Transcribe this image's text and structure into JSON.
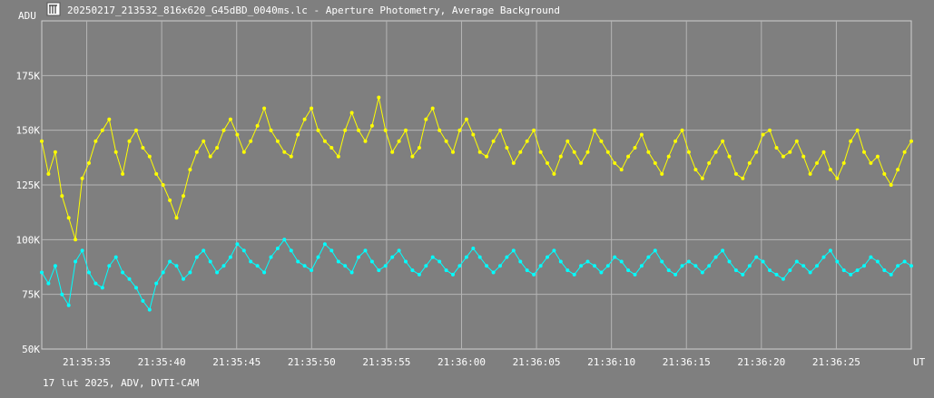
{
  "window": {
    "title": "20250217_213532_816x620_G45dBD_0040ms.lc - Aperture Photometry, Average Background",
    "icon": "lightcurve-app-icon"
  },
  "footer": {
    "caption": "17 lut 2025, ADV, DVTI-CAM"
  },
  "chart_data": {
    "type": "line",
    "title": "",
    "xlabel": "UT",
    "ylabel": "ADU",
    "grid": true,
    "ylim": [
      50000,
      200000
    ],
    "xlim": [
      "21:35:32.0",
      "21:36:30.0"
    ],
    "y_ticks": [
      {
        "value": 50000,
        "label": "50K"
      },
      {
        "value": 75000,
        "label": "75K"
      },
      {
        "value": 100000,
        "label": "100K"
      },
      {
        "value": 125000,
        "label": "125K"
      },
      {
        "value": 150000,
        "label": "150K"
      },
      {
        "value": 175000,
        "label": "175K"
      }
    ],
    "x_ticks": [
      "21:35:35",
      "21:35:40",
      "21:35:45",
      "21:35:50",
      "21:35:55",
      "21:36:00",
      "21:36:05",
      "21:36:10",
      "21:36:15",
      "21:36:20",
      "21:36:25"
    ],
    "series": [
      {
        "color": "#ffff00",
        "x_start": "21:35:32.0",
        "interval_s": 0.04,
        "y": [
          145000,
          130000,
          140000,
          120000,
          110000,
          100000,
          128000,
          135000,
          145000,
          150000,
          155000,
          140000,
          130000,
          145000,
          150000,
          142000,
          138000,
          130000,
          125000,
          118000,
          110000,
          120000,
          132000,
          140000,
          145000,
          138000,
          142000,
          150000,
          155000,
          148000,
          140000,
          145000,
          152000,
          160000,
          150000,
          145000,
          140000,
          138000,
          148000,
          155000,
          160000,
          150000,
          145000,
          142000,
          138000,
          150000,
          158000,
          150000,
          145000,
          152000,
          165000,
          150000,
          140000,
          145000,
          150000,
          138000,
          142000,
          155000,
          160000,
          150000,
          145000,
          140000,
          150000,
          155000,
          148000,
          140000,
          138000,
          145000,
          150000,
          142000,
          135000,
          140000,
          145000,
          150000,
          140000,
          135000,
          130000,
          138000,
          145000,
          140000,
          135000,
          140000,
          150000,
          145000,
          140000,
          135000,
          132000,
          138000,
          142000,
          148000,
          140000,
          135000,
          130000,
          138000,
          145000,
          150000,
          140000,
          132000,
          128000,
          135000,
          140000,
          145000,
          138000,
          130000,
          128000,
          135000,
          140000,
          148000,
          150000,
          142000,
          138000,
          140000,
          145000,
          138000,
          130000,
          135000,
          140000,
          132000,
          128000,
          135000,
          145000,
          150000,
          140000,
          135000,
          138000,
          130000,
          125000,
          132000,
          140000,
          145000
        ],
        "markers": true
      },
      {
        "color": "#00ffff",
        "x_start": "21:35:32.0",
        "interval_s": 0.04,
        "y": [
          85000,
          80000,
          88000,
          75000,
          70000,
          90000,
          95000,
          85000,
          80000,
          78000,
          88000,
          92000,
          85000,
          82000,
          78000,
          72000,
          68000,
          80000,
          85000,
          90000,
          88000,
          82000,
          85000,
          92000,
          95000,
          90000,
          85000,
          88000,
          92000,
          98000,
          95000,
          90000,
          88000,
          85000,
          92000,
          96000,
          100000,
          95000,
          90000,
          88000,
          86000,
          92000,
          98000,
          95000,
          90000,
          88000,
          85000,
          92000,
          95000,
          90000,
          86000,
          88000,
          92000,
          95000,
          90000,
          86000,
          84000,
          88000,
          92000,
          90000,
          86000,
          84000,
          88000,
          92000,
          96000,
          92000,
          88000,
          85000,
          88000,
          92000,
          95000,
          90000,
          86000,
          84000,
          88000,
          92000,
          95000,
          90000,
          86000,
          84000,
          88000,
          90000,
          88000,
          85000,
          88000,
          92000,
          90000,
          86000,
          84000,
          88000,
          92000,
          95000,
          90000,
          86000,
          84000,
          88000,
          90000,
          88000,
          85000,
          88000,
          92000,
          95000,
          90000,
          86000,
          84000,
          88000,
          92000,
          90000,
          86000,
          84000,
          82000,
          86000,
          90000,
          88000,
          85000,
          88000,
          92000,
          95000,
          90000,
          86000,
          84000,
          86000,
          88000,
          92000,
          90000,
          86000,
          84000,
          88000,
          90000,
          88000
        ],
        "markers": true
      }
    ]
  }
}
